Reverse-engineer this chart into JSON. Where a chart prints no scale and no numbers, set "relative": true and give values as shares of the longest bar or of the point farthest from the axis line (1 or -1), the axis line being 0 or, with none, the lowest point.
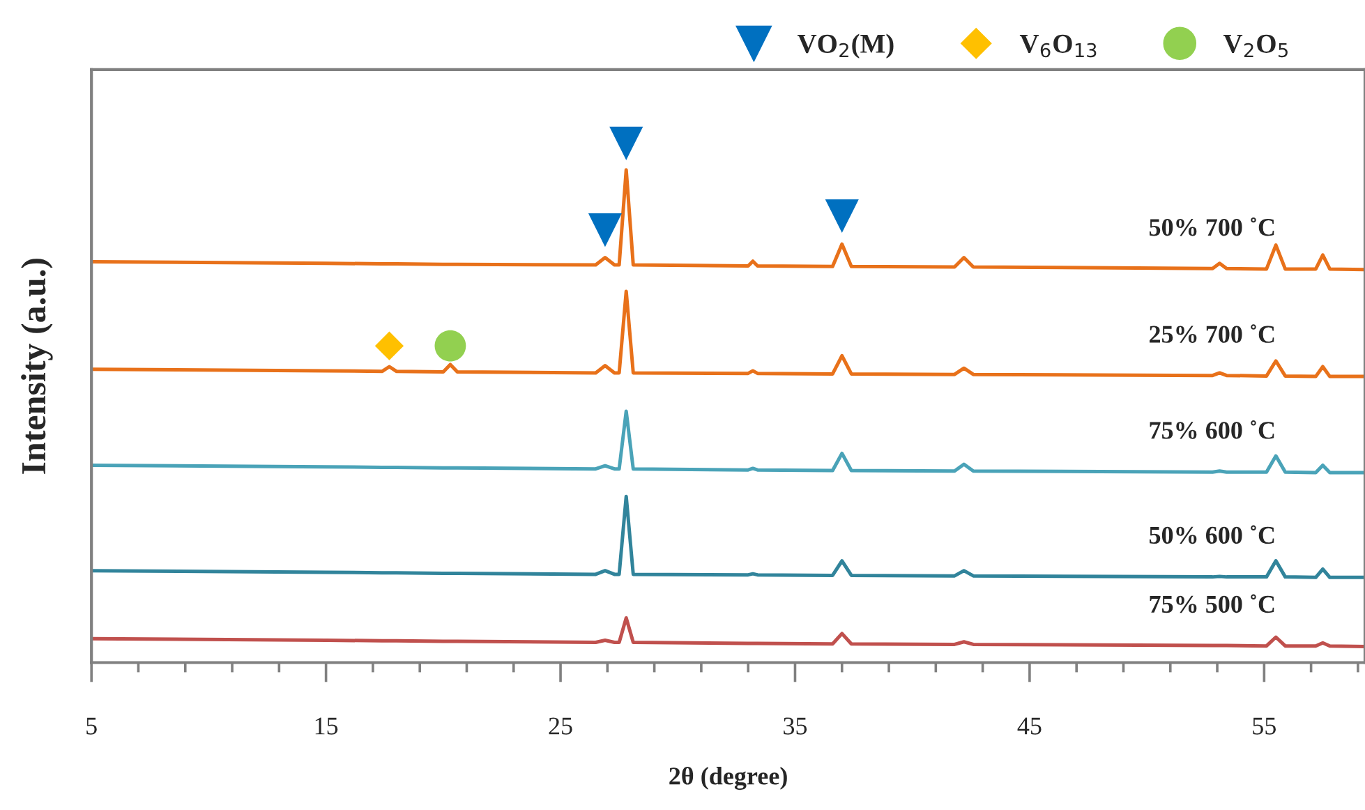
{
  "chart_data": {
    "type": "line",
    "relative": true,
    "xlabel": "2θ (degree)",
    "ylabel": "Intensity (a.u.)",
    "x": [
      5,
      15,
      17.4,
      17.7,
      18.0,
      20.0,
      20.3,
      20.6,
      26.5,
      26.9,
      27.3,
      27.5,
      27.8,
      28.1,
      33.0,
      33.2,
      33.4,
      36.6,
      37.0,
      37.4,
      41.8,
      42.2,
      42.6,
      52.8,
      53.1,
      53.4,
      55.1,
      55.5,
      55.9,
      57.2,
      57.5,
      57.8,
      59.3
    ],
    "xlim": [
      5,
      59.3
    ],
    "xticks": [
      5,
      {
        "value": 7,
        "label": null
      },
      {
        "value": 9,
        "label": null
      },
      {
        "value": 11,
        "label": null
      },
      {
        "value": 13,
        "label": null
      },
      15,
      {
        "value": 17,
        "label": null
      },
      {
        "value": 19,
        "label": null
      },
      {
        "value": 21,
        "label": null
      },
      {
        "value": 23,
        "label": null
      },
      25,
      {
        "value": 27,
        "label": null
      },
      {
        "value": 29,
        "label": null
      },
      {
        "value": 31,
        "label": null
      },
      {
        "value": 33,
        "label": null
      },
      35,
      {
        "value": 37,
        "label": null
      },
      {
        "value": 39,
        "label": null
      },
      {
        "value": 41,
        "label": null
      },
      {
        "value": 43,
        "label": null
      },
      45,
      {
        "value": 47,
        "label": null
      },
      {
        "value": 49,
        "label": null
      },
      {
        "value": 51,
        "label": null
      },
      {
        "value": 53,
        "label": null
      },
      55,
      {
        "value": 57,
        "label": null
      },
      {
        "value": 59,
        "label": null
      }
    ],
    "tick_labels": "x",
    "grid": false,
    "legend": "top",
    "series": [
      {
        "name": "50% 700 ˚C",
        "color": "#e8711a",
        "values": [
          0.772,
          0.769,
          0.768,
          0.768,
          0.768,
          0.767,
          0.767,
          0.767,
          0.766,
          0.78,
          0.766,
          0.766,
          0.949,
          0.766,
          0.764,
          0.773,
          0.764,
          0.763,
          0.806,
          0.763,
          0.762,
          0.78,
          0.762,
          0.759,
          0.769,
          0.759,
          0.758,
          0.804,
          0.758,
          0.758,
          0.785,
          0.758,
          0.757
        ]
      },
      {
        "name": "25% 700 ˚C",
        "color": "#e8711a",
        "values": [
          0.565,
          0.562,
          0.561,
          0.57,
          0.561,
          0.56,
          0.574,
          0.56,
          0.558,
          0.572,
          0.558,
          0.558,
          0.715,
          0.558,
          0.557,
          0.562,
          0.557,
          0.556,
          0.591,
          0.556,
          0.555,
          0.567,
          0.555,
          0.553,
          0.558,
          0.553,
          0.552,
          0.581,
          0.552,
          0.551,
          0.57,
          0.551,
          0.551
        ]
      },
      {
        "name": "75% 600 ˚C",
        "color": "#4aa3b8",
        "values": [
          0.38,
          0.377,
          0.376,
          0.376,
          0.376,
          0.375,
          0.375,
          0.375,
          0.373,
          0.379,
          0.373,
          0.373,
          0.484,
          0.373,
          0.371,
          0.374,
          0.371,
          0.37,
          0.403,
          0.37,
          0.369,
          0.382,
          0.369,
          0.367,
          0.369,
          0.367,
          0.367,
          0.398,
          0.367,
          0.366,
          0.38,
          0.366,
          0.366
        ]
      },
      {
        "name": "50% 600 ˚C",
        "color": "#31849b",
        "values": [
          0.177,
          0.174,
          0.173,
          0.173,
          0.173,
          0.172,
          0.172,
          0.172,
          0.17,
          0.177,
          0.17,
          0.17,
          0.32,
          0.17,
          0.169,
          0.171,
          0.169,
          0.168,
          0.196,
          0.168,
          0.167,
          0.177,
          0.167,
          0.165,
          0.166,
          0.165,
          0.165,
          0.196,
          0.165,
          0.164,
          0.18,
          0.164,
          0.164
        ]
      },
      {
        "name": "75% 500 ˚C",
        "color": "#c0504d",
        "values": [
          0.046,
          0.043,
          0.042,
          0.042,
          0.042,
          0.041,
          0.041,
          0.041,
          0.039,
          0.043,
          0.039,
          0.039,
          0.086,
          0.039,
          0.037,
          0.037,
          0.037,
          0.036,
          0.056,
          0.036,
          0.035,
          0.04,
          0.035,
          0.033,
          0.033,
          0.033,
          0.032,
          0.049,
          0.032,
          0.032,
          0.038,
          0.032,
          0.031
        ]
      },
      {
        "name": "VO$_{2}$(M)",
        "type": "scatter",
        "marker": "triangle",
        "color": "#0070c0",
        "x": [
          26.9,
          27.8,
          37.0
        ],
        "values": [
          0.833,
          1.0,
          0.86
        ]
      },
      {
        "name": "V$_{6}$O$_{13}$",
        "type": "scatter",
        "marker": "diamond",
        "color": "#ffc000",
        "x": [
          17.7
        ],
        "values": [
          0.61
        ]
      },
      {
        "name": "V$_{2}$O$_{5}$",
        "type": "scatter",
        "marker": "circle",
        "color": "#92d050",
        "x": [
          20.3
        ],
        "values": [
          0.61
        ]
      }
    ]
  }
}
